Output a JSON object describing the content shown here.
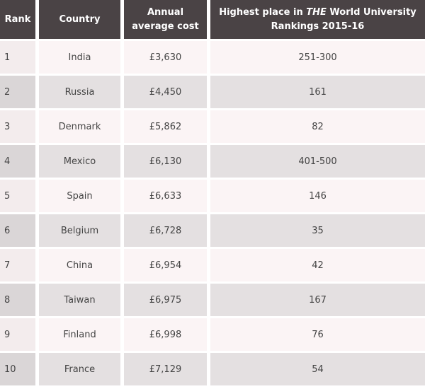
{
  "table": {
    "header": [
      "Rank",
      "Country",
      "Annual average cost",
      [
        "Highest place in ",
        "THE",
        " World University Rankings 2015-16"
      ]
    ],
    "rows": [
      [
        "1",
        "India",
        "£3,630",
        "251-300"
      ],
      [
        "2",
        "Russia",
        "£4,450",
        "161"
      ],
      [
        "3",
        "Denmark",
        "£5,862",
        "82"
      ],
      [
        "4",
        "Mexico",
        "£6,130",
        "401-500"
      ],
      [
        "5",
        "Spain",
        "£6,633",
        "146"
      ],
      [
        "6",
        "Belgium",
        "£6,728",
        "35"
      ],
      [
        "7",
        "China",
        "£6,954",
        "42"
      ],
      [
        "8",
        "Taiwan",
        "£6,975",
        "167"
      ],
      [
        "9",
        "Finland",
        "£6,998",
        "76"
      ],
      [
        "10",
        "France",
        "£7,129",
        "54"
      ]
    ]
  }
}
